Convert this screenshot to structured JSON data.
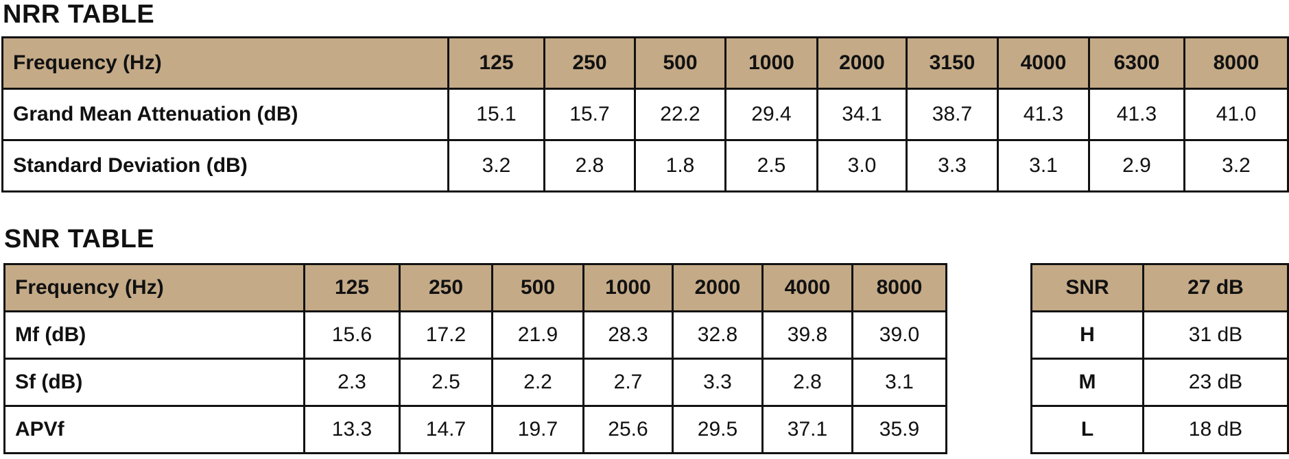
{
  "nrr": {
    "title": "NRR TABLE",
    "header": [
      "Frequency (Hz)",
      "125",
      "250",
      "500",
      "1000",
      "2000",
      "3150",
      "4000",
      "6300",
      "8000"
    ],
    "rows": [
      [
        "Grand Mean Attenuation (dB)",
        "15.1",
        "15.7",
        "22.2",
        "29.4",
        "34.1",
        "38.7",
        "41.3",
        "41.3",
        "41.0"
      ],
      [
        "Standard Deviation (dB)",
        "3.2",
        "2.8",
        "1.8",
        "2.5",
        "3.0",
        "3.3",
        "3.1",
        "2.9",
        "3.2"
      ]
    ]
  },
  "snr": {
    "title": "SNR TABLE",
    "header": [
      "Frequency (Hz)",
      "125",
      "250",
      "500",
      "1000",
      "2000",
      "4000",
      "8000"
    ],
    "rows": [
      [
        "Mf (dB)",
        "15.6",
        "17.2",
        "21.9",
        "28.3",
        "32.8",
        "39.8",
        "39.0"
      ],
      [
        "Sf (dB)",
        "2.3",
        "2.5",
        "2.2",
        "2.7",
        "3.3",
        "2.8",
        "3.1"
      ],
      [
        "APVf",
        "13.3",
        "14.7",
        "19.7",
        "25.6",
        "29.5",
        "37.1",
        "35.9"
      ]
    ],
    "summary": {
      "header": [
        "SNR",
        "27 dB"
      ],
      "rows": [
        [
          "H",
          "31 dB"
        ],
        [
          "M",
          "23 dB"
        ],
        [
          "L",
          "18 dB"
        ]
      ]
    }
  },
  "colors": {
    "header_bg": "#c4aa87",
    "border": "#111111",
    "text": "#111111"
  }
}
